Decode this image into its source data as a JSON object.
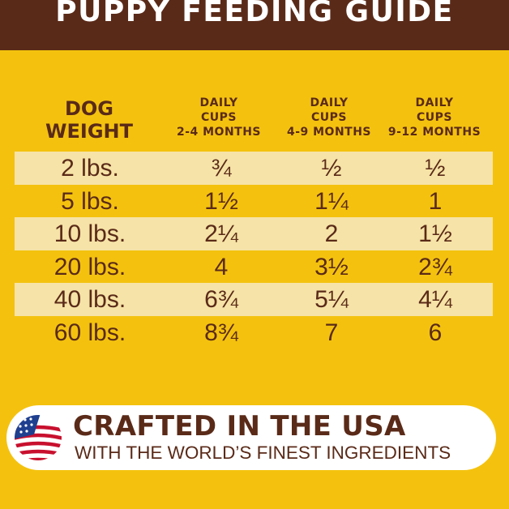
{
  "banner": {
    "title": "PUPPY FEEDING GUIDE"
  },
  "table": {
    "weight_header": [
      "DOG",
      "WEIGHT"
    ],
    "columns": [
      {
        "line1": "DAILY",
        "line2": "CUPS",
        "line3": "2-4 MONTHS"
      },
      {
        "line1": "DAILY",
        "line2": "CUPS",
        "line3": "4-9 MONTHS"
      },
      {
        "line1": "DAILY",
        "line2": "CUPS",
        "line3": "9-12 MONTHS"
      }
    ],
    "rows": [
      {
        "weight": "2 lbs.",
        "m2_4": "¾",
        "m4_9": "½",
        "m9_12": "½"
      },
      {
        "weight": "5 lbs.",
        "m2_4": "1½",
        "m4_9": "1¼",
        "m9_12": "1"
      },
      {
        "weight": "10 lbs.",
        "m2_4": "2¼",
        "m4_9": "2",
        "m9_12": "1½"
      },
      {
        "weight": "20 lbs.",
        "m2_4": "4",
        "m4_9": "3½",
        "m9_12": "2¾"
      },
      {
        "weight": "40 lbs.",
        "m2_4": "6¾",
        "m4_9": "5¼",
        "m9_12": "4¼"
      },
      {
        "weight": "60 lbs.",
        "m2_4": "8¾",
        "m4_9": "7",
        "m9_12": "6"
      }
    ]
  },
  "footer": {
    "title": "CRAFTED IN THE USA",
    "subtitle": "WITH THE WORLD’S FINEST INGREDIENTS",
    "icon": "us-flag-icon"
  },
  "colors": {
    "background": "#f4c20e",
    "brown": "#5a2a18",
    "row_shade": "#f6e3a7",
    "flag_red": "#c8102e",
    "flag_blue": "#1f3f8f"
  }
}
